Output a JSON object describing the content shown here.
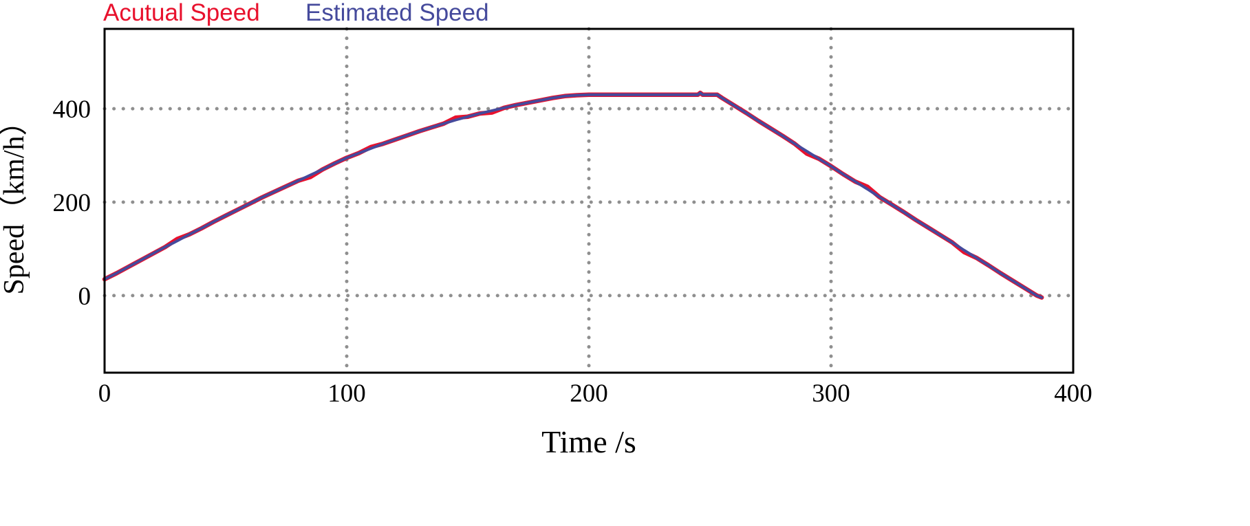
{
  "chart_data": {
    "type": "line",
    "title": "",
    "xlabel": "Time /s",
    "ylabel": "Speed（km/h）",
    "xlim": [
      0,
      400
    ],
    "ylim": [
      -165,
      571
    ],
    "xticks": [
      0,
      100,
      200,
      300,
      400
    ],
    "yticks": [
      0,
      200,
      400
    ],
    "grid": {
      "style": "dotted",
      "x": [
        100,
        200,
        300
      ],
      "y": [
        0,
        200,
        400
      ]
    },
    "legend": {
      "position": "top-left",
      "actual_label": "Acutual Speed",
      "estimated_label": "Estimated Speed"
    },
    "colors": {
      "actual": "#e8112d",
      "estimated": "#454a9c",
      "grid": "#8f8f8f",
      "axis": "#000000"
    },
    "series": [
      {
        "name": "Acutual Speed",
        "color_key": "actual",
        "points": [
          [
            0,
            35
          ],
          [
            5,
            48
          ],
          [
            10,
            62
          ],
          [
            15,
            76
          ],
          [
            20,
            90
          ],
          [
            25,
            104
          ],
          [
            30,
            121
          ],
          [
            35,
            131
          ],
          [
            40,
            144
          ],
          [
            45,
            158
          ],
          [
            50,
            171
          ],
          [
            55,
            184
          ],
          [
            60,
            197
          ],
          [
            65,
            210
          ],
          [
            70,
            222
          ],
          [
            75,
            234
          ],
          [
            80,
            246
          ],
          [
            85,
            254
          ],
          [
            90,
            270
          ],
          [
            95,
            283
          ],
          [
            100,
            295
          ],
          [
            105,
            305
          ],
          [
            110,
            318
          ],
          [
            115,
            325
          ],
          [
            120,
            334
          ],
          [
            125,
            343
          ],
          [
            130,
            352
          ],
          [
            135,
            360
          ],
          [
            140,
            368
          ],
          [
            145,
            381
          ],
          [
            150,
            383
          ],
          [
            155,
            390
          ],
          [
            160,
            392
          ],
          [
            165,
            402
          ],
          [
            170,
            408
          ],
          [
            175,
            413
          ],
          [
            180,
            418
          ],
          [
            185,
            423
          ],
          [
            190,
            427
          ],
          [
            195,
            429
          ],
          [
            200,
            430
          ],
          [
            210,
            430
          ],
          [
            220,
            430
          ],
          [
            230,
            430
          ],
          [
            240,
            430
          ],
          [
            245,
            430
          ],
          [
            246,
            434
          ],
          [
            247,
            430
          ],
          [
            250,
            430
          ],
          [
            253,
            430
          ],
          [
            255,
            423
          ],
          [
            260,
            407
          ],
          [
            265,
            391
          ],
          [
            270,
            374
          ],
          [
            275,
            358
          ],
          [
            280,
            342
          ],
          [
            285,
            325
          ],
          [
            290,
            304
          ],
          [
            295,
            293
          ],
          [
            300,
            277
          ],
          [
            305,
            260
          ],
          [
            310,
            244
          ],
          [
            315,
            233
          ],
          [
            320,
            211
          ],
          [
            325,
            195
          ],
          [
            330,
            179
          ],
          [
            335,
            162
          ],
          [
            340,
            146
          ],
          [
            345,
            130
          ],
          [
            350,
            114
          ],
          [
            355,
            93
          ],
          [
            360,
            81
          ],
          [
            365,
            65
          ],
          [
            370,
            48
          ],
          [
            375,
            32
          ],
          [
            380,
            16
          ],
          [
            385,
            0
          ],
          [
            387,
            -4
          ]
        ]
      },
      {
        "name": "Estimated Speed",
        "color_key": "estimated",
        "points": [
          [
            0,
            35
          ],
          [
            5,
            48
          ],
          [
            10,
            62
          ],
          [
            15,
            76
          ],
          [
            20,
            90
          ],
          [
            25,
            104
          ],
          [
            30,
            117
          ],
          [
            35,
            131
          ],
          [
            40,
            144
          ],
          [
            45,
            158
          ],
          [
            50,
            171
          ],
          [
            55,
            184
          ],
          [
            60,
            197
          ],
          [
            65,
            210
          ],
          [
            70,
            222
          ],
          [
            75,
            234
          ],
          [
            80,
            246
          ],
          [
            85,
            258
          ],
          [
            90,
            270
          ],
          [
            95,
            283
          ],
          [
            100,
            295
          ],
          [
            105,
            305
          ],
          [
            110,
            315
          ],
          [
            115,
            325
          ],
          [
            120,
            334
          ],
          [
            125,
            343
          ],
          [
            130,
            352
          ],
          [
            135,
            360
          ],
          [
            140,
            368
          ],
          [
            145,
            376
          ],
          [
            150,
            383
          ],
          [
            155,
            390
          ],
          [
            160,
            396
          ],
          [
            165,
            402
          ],
          [
            170,
            408
          ],
          [
            175,
            413
          ],
          [
            180,
            418
          ],
          [
            185,
            423
          ],
          [
            190,
            427
          ],
          [
            195,
            429
          ],
          [
            200,
            430
          ],
          [
            210,
            430
          ],
          [
            220,
            430
          ],
          [
            230,
            430
          ],
          [
            240,
            430
          ],
          [
            245,
            430
          ],
          [
            246,
            434
          ],
          [
            247,
            430
          ],
          [
            250,
            430
          ],
          [
            253,
            430
          ],
          [
            255,
            423
          ],
          [
            260,
            407
          ],
          [
            265,
            391
          ],
          [
            270,
            374
          ],
          [
            275,
            358
          ],
          [
            280,
            342
          ],
          [
            285,
            325
          ],
          [
            290,
            309
          ],
          [
            295,
            293
          ],
          [
            300,
            277
          ],
          [
            305,
            260
          ],
          [
            310,
            244
          ],
          [
            315,
            228
          ],
          [
            320,
            211
          ],
          [
            325,
            195
          ],
          [
            330,
            179
          ],
          [
            335,
            162
          ],
          [
            340,
            146
          ],
          [
            345,
            130
          ],
          [
            350,
            114
          ],
          [
            355,
            97
          ],
          [
            360,
            81
          ],
          [
            365,
            65
          ],
          [
            370,
            48
          ],
          [
            375,
            32
          ],
          [
            380,
            16
          ],
          [
            385,
            0
          ],
          [
            387,
            -4
          ]
        ]
      }
    ]
  }
}
